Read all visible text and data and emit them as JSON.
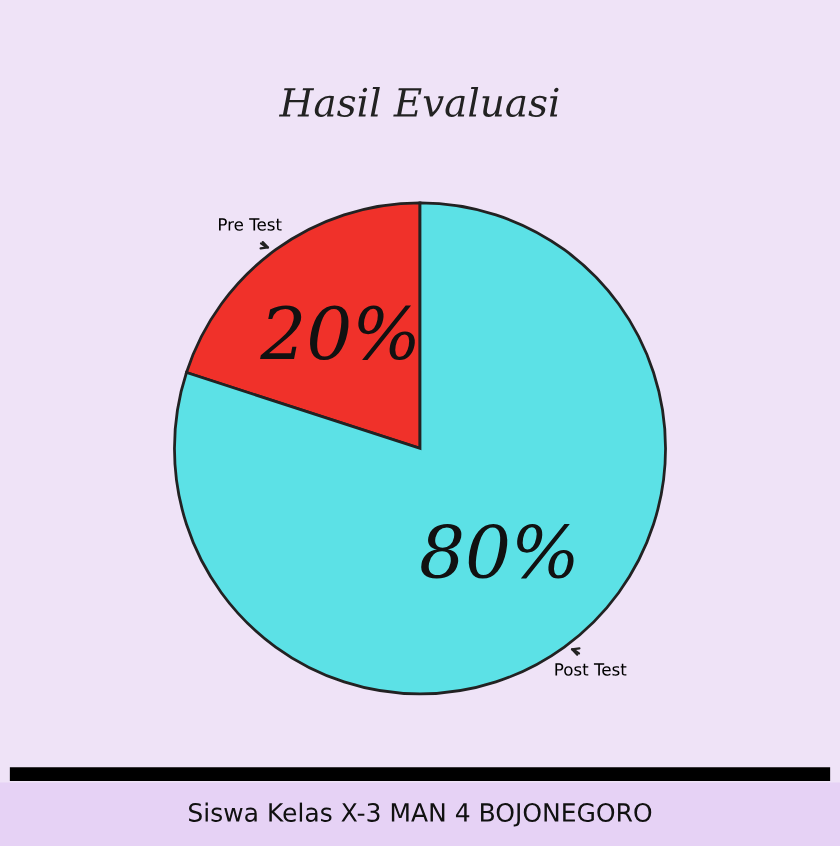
{
  "chart_data": {
    "type": "pie",
    "title": "Hasil Evaluasi",
    "categories": [
      "Pre Test",
      "Post Test"
    ],
    "values": [
      20,
      80
    ],
    "colors": [
      "#f0312a",
      "#5ce1e6"
    ],
    "value_labels": [
      "20%",
      "80%"
    ],
    "annotations": [
      "Siswa Kelas X-3 MAN 4 BOJONEGORO"
    ]
  }
}
